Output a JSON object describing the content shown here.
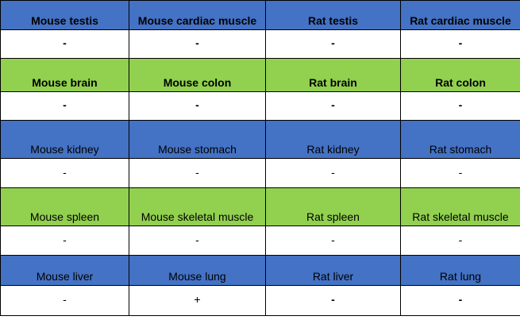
{
  "colors": {
    "blue": "#4472c4",
    "green": "#92d050",
    "white": "#ffffff"
  },
  "groups": [
    {
      "color": "blue",
      "bold_labels": true,
      "bold_values": [
        true,
        true,
        true,
        true
      ],
      "labels": [
        "Mouse testis",
        "Mouse cardiac muscle",
        "Rat testis",
        "Rat cardiac muscle"
      ],
      "values": [
        "-",
        "-",
        "-",
        "-"
      ]
    },
    {
      "color": "green",
      "bold_labels": true,
      "bold_values": [
        true,
        true,
        true,
        true
      ],
      "labels": [
        "Mouse brain",
        "Mouse colon",
        "Rat brain",
        "Rat colon"
      ],
      "values": [
        "-",
        "-",
        "-",
        "-"
      ]
    },
    {
      "color": "blue",
      "bold_labels": false,
      "bold_values": [
        false,
        false,
        false,
        false
      ],
      "labels": [
        "Mouse kidney",
        "Mouse stomach",
        "Rat kidney",
        "Rat stomach"
      ],
      "values": [
        "-",
        "-",
        "-",
        "-"
      ]
    },
    {
      "color": "green",
      "bold_labels": false,
      "bold_values": [
        false,
        false,
        false,
        false
      ],
      "labels": [
        "Mouse spleen",
        "Mouse skeletal muscle",
        "Rat spleen",
        "Rat skeletal muscle"
      ],
      "values": [
        "-",
        "-",
        "-",
        "-"
      ]
    },
    {
      "color": "blue",
      "bold_labels": false,
      "bold_values": [
        false,
        false,
        true,
        true
      ],
      "labels": [
        "Mouse liver",
        "Mouse lung",
        "Rat liver",
        "Rat lung"
      ],
      "values": [
        "-",
        "+",
        "-",
        "-"
      ]
    }
  ]
}
